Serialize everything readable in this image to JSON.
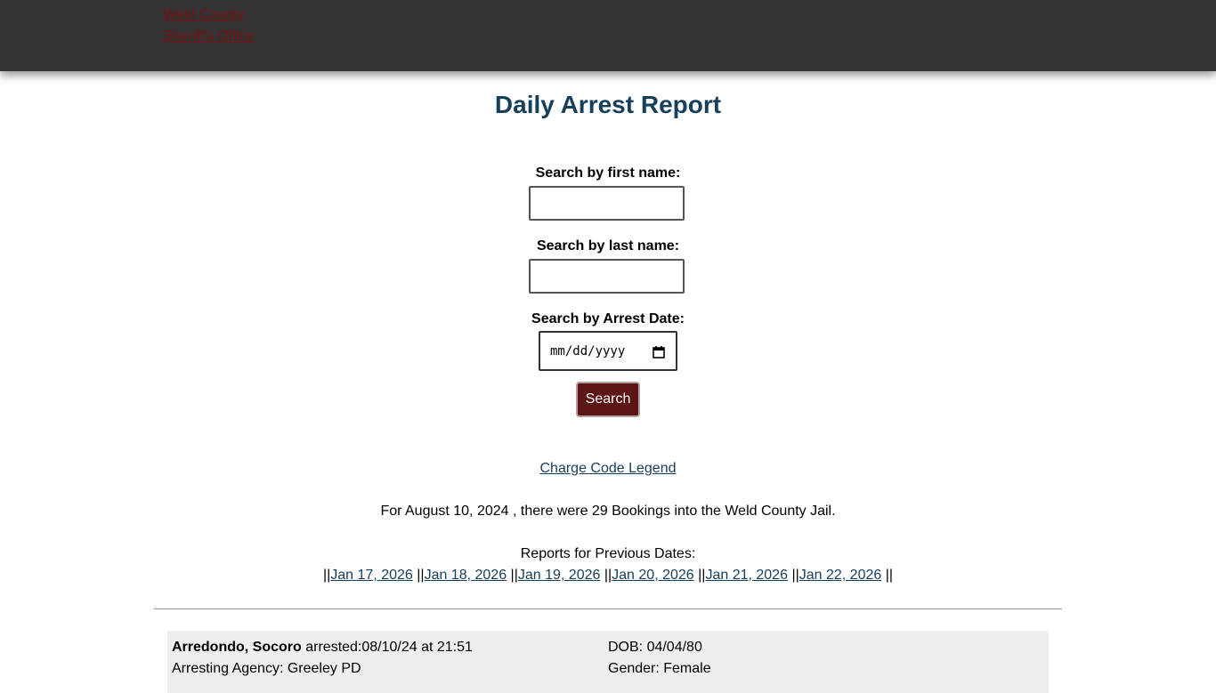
{
  "header": {
    "logo_alt": "Weld County Sheriff's Office"
  },
  "title": "Daily Arrest Report",
  "search": {
    "first_name_label": "Search by first name:",
    "last_name_label": "Search by last name:",
    "date_label": "Search by Arrest Date:",
    "date_placeholder": "mm/dd/yyyy",
    "button": "Search"
  },
  "legend_link": "Charge Code Legend",
  "summary": "For August 10, 2024 , there were 29 Bookings into the Weld County Jail.",
  "previous": {
    "heading": "Reports for Previous Dates:",
    "separator": "||",
    "dates": [
      "Jan 17, 2026",
      "Jan 18, 2026",
      "Jan 19, 2026",
      "Jan 20, 2026",
      "Jan 21, 2026",
      "Jan 22, 2026"
    ]
  },
  "records": [
    {
      "name": "Arredondo, Socoro",
      "arrested": "arrested:08/10/24 at 21:51",
      "dob": "DOB: 04/04/80",
      "agency": "Arresting Agency: Greeley PD",
      "gender": "Gender: Female"
    }
  ]
}
